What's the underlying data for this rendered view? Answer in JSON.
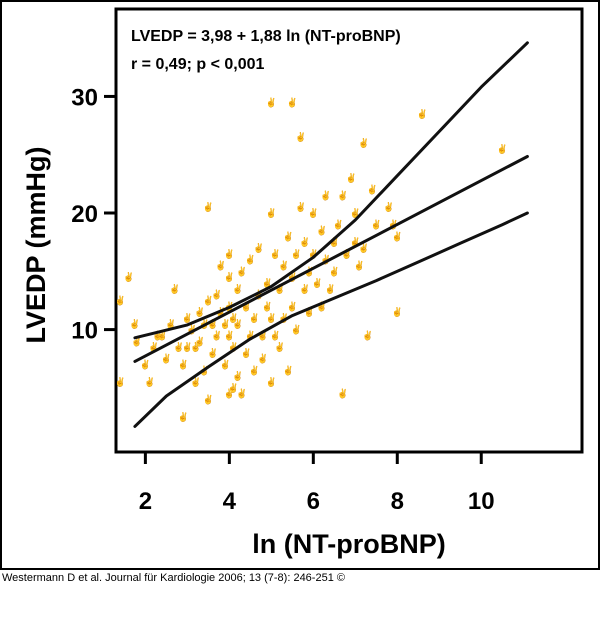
{
  "chart_data": {
    "type": "scatter",
    "title": "",
    "equation": "LVEDP = 3,98 + 1,88 ln (NT-proBNP)",
    "stats": "r = 0,49; p < 0,001",
    "xlabel": "ln (NT-proBNP)",
    "ylabel": "LVEDP (mmHg)",
    "xlim": [
      1.3,
      12.4
    ],
    "ylim": [
      -0.5,
      37.5
    ],
    "xticks": [
      2,
      4,
      6,
      8,
      10
    ],
    "xtick_labels": [
      "2",
      "4",
      "6",
      "8",
      "10"
    ],
    "yticks": [
      10,
      20,
      30
    ],
    "ytick_labels": [
      "10",
      "20",
      "30"
    ],
    "grid": false,
    "marker_glyph": "✌",
    "marker_color": "#d24b4b",
    "line_color": "#111111",
    "regression": {
      "intercept": 3.98,
      "slope": 1.88,
      "x_range": [
        1.75,
        11.1
      ]
    },
    "confidence_band": {
      "upper": [
        [
          1.75,
          9.3
        ],
        [
          3,
          10.4
        ],
        [
          4,
          11.9
        ],
        [
          5,
          13.7
        ],
        [
          6,
          16.2
        ],
        [
          7,
          19.4
        ],
        [
          8,
          23.2
        ],
        [
          9,
          27.0
        ],
        [
          10,
          30.8
        ],
        [
          11.1,
          34.6
        ]
      ],
      "lower": [
        [
          1.75,
          1.7
        ],
        [
          2.5,
          4.3
        ],
        [
          3.5,
          6.8
        ],
        [
          4.5,
          9.2
        ],
        [
          5.5,
          11.2
        ],
        [
          6.5,
          12.7
        ],
        [
          7.5,
          14.2
        ],
        [
          8.5,
          15.8
        ],
        [
          9.5,
          17.4
        ],
        [
          10.5,
          19.0
        ],
        [
          11.1,
          20.0
        ]
      ]
    },
    "points": [
      [
        1.4,
        12.5
      ],
      [
        1.4,
        5.5
      ],
      [
        1.6,
        14.5
      ],
      [
        1.75,
        10.5
      ],
      [
        1.8,
        9.0
      ],
      [
        2.0,
        7.0
      ],
      [
        2.1,
        5.5
      ],
      [
        2.2,
        8.5
      ],
      [
        2.3,
        9.5
      ],
      [
        2.4,
        9.5
      ],
      [
        2.5,
        7.5
      ],
      [
        2.6,
        10.5
      ],
      [
        2.7,
        13.5
      ],
      [
        2.8,
        8.5
      ],
      [
        2.9,
        7.0
      ],
      [
        2.9,
        2.5
      ],
      [
        3.0,
        8.5
      ],
      [
        3.0,
        11.0
      ],
      [
        3.1,
        10.0
      ],
      [
        3.2,
        8.5
      ],
      [
        3.2,
        5.5
      ],
      [
        3.3,
        11.5
      ],
      [
        3.3,
        9.0
      ],
      [
        3.4,
        10.5
      ],
      [
        3.4,
        6.5
      ],
      [
        3.5,
        12.5
      ],
      [
        3.5,
        20.5
      ],
      [
        3.5,
        4.0
      ],
      [
        3.6,
        10.5
      ],
      [
        3.6,
        8.0
      ],
      [
        3.7,
        9.5
      ],
      [
        3.7,
        13.0
      ],
      [
        3.8,
        11.5
      ],
      [
        3.8,
        15.5
      ],
      [
        3.9,
        10.5
      ],
      [
        3.9,
        7.0
      ],
      [
        4.0,
        4.5
      ],
      [
        4.0,
        9.5
      ],
      [
        4.0,
        12.0
      ],
      [
        4.0,
        14.5
      ],
      [
        4.0,
        16.5
      ],
      [
        4.1,
        5.0
      ],
      [
        4.1,
        8.5
      ],
      [
        4.1,
        11.0
      ],
      [
        4.2,
        6.0
      ],
      [
        4.2,
        10.5
      ],
      [
        4.2,
        13.5
      ],
      [
        4.3,
        15.0
      ],
      [
        4.3,
        4.5
      ],
      [
        4.4,
        8.0
      ],
      [
        4.4,
        12.0
      ],
      [
        4.5,
        9.5
      ],
      [
        4.5,
        16.0
      ],
      [
        4.6,
        11.0
      ],
      [
        4.6,
        6.5
      ],
      [
        4.7,
        13.0
      ],
      [
        4.7,
        17.0
      ],
      [
        4.8,
        9.5
      ],
      [
        4.8,
        7.5
      ],
      [
        4.9,
        12.0
      ],
      [
        4.9,
        14.0
      ],
      [
        5.0,
        11.0
      ],
      [
        5.0,
        5.5
      ],
      [
        5.0,
        20.0
      ],
      [
        5.0,
        29.5
      ],
      [
        5.1,
        9.5
      ],
      [
        5.1,
        16.5
      ],
      [
        5.2,
        13.5
      ],
      [
        5.2,
        8.5
      ],
      [
        5.3,
        15.5
      ],
      [
        5.3,
        11.0
      ],
      [
        5.4,
        18.0
      ],
      [
        5.4,
        6.5
      ],
      [
        5.5,
        12.0
      ],
      [
        5.5,
        14.5
      ],
      [
        5.5,
        29.5
      ],
      [
        5.6,
        16.5
      ],
      [
        5.6,
        10.0
      ],
      [
        5.7,
        20.5
      ],
      [
        5.7,
        26.5
      ],
      [
        5.8,
        13.5
      ],
      [
        5.8,
        17.5
      ],
      [
        5.9,
        15.0
      ],
      [
        5.9,
        11.5
      ],
      [
        6.0,
        20.0
      ],
      [
        6.0,
        16.5
      ],
      [
        6.1,
        14.0
      ],
      [
        6.2,
        18.5
      ],
      [
        6.2,
        12.0
      ],
      [
        6.3,
        21.5
      ],
      [
        6.3,
        16.0
      ],
      [
        6.4,
        13.5
      ],
      [
        6.5,
        17.5
      ],
      [
        6.5,
        15.0
      ],
      [
        6.6,
        19.0
      ],
      [
        6.7,
        21.5
      ],
      [
        6.7,
        4.5
      ],
      [
        6.8,
        16.5
      ],
      [
        6.9,
        23.0
      ],
      [
        7.0,
        17.5
      ],
      [
        7.0,
        20.0
      ],
      [
        7.1,
        15.5
      ],
      [
        7.2,
        26.0
      ],
      [
        7.2,
        17.0
      ],
      [
        7.3,
        9.5
      ],
      [
        7.4,
        22.0
      ],
      [
        7.5,
        19.0
      ],
      [
        7.8,
        20.5
      ],
      [
        7.9,
        19.0
      ],
      [
        8.0,
        11.5
      ],
      [
        8.0,
        18.0
      ],
      [
        8.6,
        28.5
      ],
      [
        10.5,
        25.5
      ]
    ]
  },
  "footer": {
    "citation": "Westermann D et al. Journal für Kardiologie 2006; 13 (7-8): 246-251 ©"
  }
}
